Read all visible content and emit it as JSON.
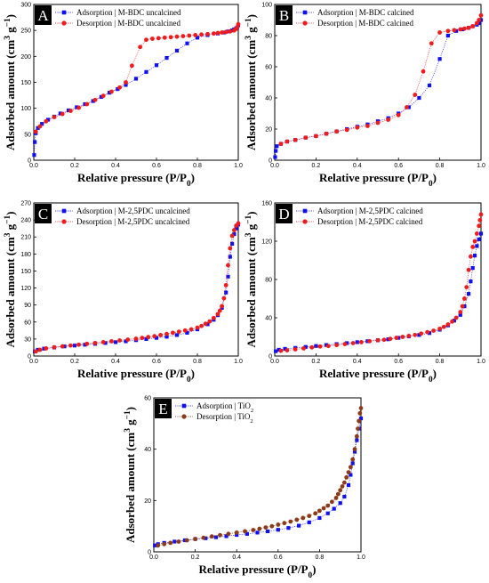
{
  "chart_data": [
    {
      "type": "scatter",
      "panel_label": "A",
      "xlabel": "Relative pressure (P/P0)",
      "ylabel": "Adsorbed amount (cm3 g-1)",
      "xlim": [
        0,
        1.0
      ],
      "ylim": [
        0,
        300
      ],
      "xticks": [
        "0.0",
        "0.2",
        "0.4",
        "0.6",
        "0.8",
        "1.0"
      ],
      "yticks": [
        "0",
        "50",
        "100",
        "150",
        "200",
        "250",
        "300"
      ],
      "grid": false,
      "legend_position": "top-left",
      "series": [
        {
          "name": "Adsorption | M-BDC uncalcined",
          "color": "#1010ee",
          "marker": "square",
          "x": [
            0.002,
            0.005,
            0.01,
            0.02,
            0.04,
            0.07,
            0.1,
            0.13,
            0.17,
            0.21,
            0.25,
            0.29,
            0.33,
            0.37,
            0.41,
            0.45,
            0.5,
            0.55,
            0.6,
            0.65,
            0.7,
            0.75,
            0.8,
            0.85,
            0.9,
            0.93,
            0.95,
            0.97,
            0.98,
            0.99,
            0.995,
            1.0
          ],
          "y": [
            10,
            35,
            52,
            62,
            70,
            78,
            84,
            90,
            96,
            102,
            108,
            114,
            122,
            130,
            137,
            145,
            157,
            170,
            183,
            197,
            211,
            225,
            236,
            241,
            244,
            246,
            248,
            250,
            252,
            254,
            256,
            260
          ]
        },
        {
          "name": "Desorption | M-BDC uncalcined",
          "color": "#ee1c1c",
          "marker": "circle",
          "x": [
            1.0,
            0.995,
            0.99,
            0.98,
            0.96,
            0.94,
            0.92,
            0.9,
            0.88,
            0.85,
            0.82,
            0.79,
            0.76,
            0.73,
            0.7,
            0.67,
            0.64,
            0.61,
            0.58,
            0.55,
            0.52,
            0.48,
            0.45,
            0.42,
            0.38,
            0.34,
            0.3,
            0.26,
            0.22,
            0.18,
            0.14,
            0.1,
            0.06,
            0.03,
            0.01
          ],
          "y": [
            262,
            256,
            253,
            250,
            248,
            247,
            246,
            245,
            244,
            243,
            242,
            241,
            240,
            239,
            238,
            237,
            236,
            235,
            234,
            232,
            218,
            182,
            150,
            140,
            132,
            124,
            116,
            108,
            101,
            95,
            89,
            83,
            75,
            65,
            55
          ]
        }
      ]
    },
    {
      "type": "scatter",
      "panel_label": "B",
      "xlabel": "Relative pressure (P/P0)",
      "ylabel": "Adsorbed amount (cm3 g-1)",
      "xlim": [
        0,
        1.0
      ],
      "ylim": [
        0,
        100
      ],
      "xticks": [
        "0.0",
        "0.2",
        "0.4",
        "0.6",
        "0.8",
        "1.0"
      ],
      "yticks": [
        "0",
        "20",
        "40",
        "60",
        "80",
        "100"
      ],
      "grid": false,
      "legend_position": "top-left",
      "series": [
        {
          "name": "Adsorption | M-BDC calcined",
          "color": "#1010ee",
          "marker": "square",
          "x": [
            0.002,
            0.005,
            0.01,
            0.03,
            0.06,
            0.1,
            0.15,
            0.2,
            0.25,
            0.3,
            0.35,
            0.4,
            0.45,
            0.5,
            0.55,
            0.6,
            0.65,
            0.7,
            0.75,
            0.8,
            0.84,
            0.88,
            0.91,
            0.94,
            0.96,
            0.98,
            0.99,
            1.0
          ],
          "y": [
            2,
            6,
            9,
            10.5,
            12,
            13,
            14.5,
            15.5,
            17,
            18.5,
            20,
            21.5,
            23,
            25,
            27,
            30,
            34,
            40,
            48,
            65,
            80,
            83,
            84,
            85,
            86,
            87,
            88,
            90
          ]
        },
        {
          "name": "Desorption | M-BDC calcined",
          "color": "#ee1c1c",
          "marker": "circle",
          "x": [
            1.0,
            0.99,
            0.98,
            0.96,
            0.94,
            0.92,
            0.9,
            0.87,
            0.84,
            0.8,
            0.76,
            0.72,
            0.68,
            0.64,
            0.6,
            0.55,
            0.5,
            0.45,
            0.4,
            0.35,
            0.3,
            0.25,
            0.2,
            0.15,
            0.1,
            0.06,
            0.03
          ],
          "y": [
            93,
            90,
            88,
            86,
            85,
            84.5,
            84,
            83.5,
            83,
            82,
            75,
            57,
            42,
            34,
            29,
            26,
            24,
            22,
            21,
            19.5,
            18.5,
            17,
            15.5,
            14.5,
            13,
            12,
            10.5
          ]
        }
      ]
    },
    {
      "type": "scatter",
      "panel_label": "C",
      "xlabel": "Relative pressure (P/P0)",
      "ylabel": "Adsorbed amount (cm3 g-1)",
      "xlim": [
        0,
        1.0
      ],
      "ylim": [
        0,
        270
      ],
      "xticks": [
        "0.0",
        "0.2",
        "0.4",
        "0.6",
        "0.8",
        "1.0"
      ],
      "yticks": [
        "0",
        "30",
        "60",
        "90",
        "120",
        "150",
        "180",
        "210",
        "240",
        "270"
      ],
      "grid": false,
      "legend_position": "top-left",
      "series": [
        {
          "name": "Adsorption | M-2,5PDC uncalcined",
          "color": "#1010ee",
          "marker": "square",
          "x": [
            0.005,
            0.02,
            0.05,
            0.1,
            0.15,
            0.2,
            0.25,
            0.3,
            0.35,
            0.4,
            0.45,
            0.5,
            0.55,
            0.6,
            0.65,
            0.7,
            0.75,
            0.8,
            0.85,
            0.88,
            0.9,
            0.92,
            0.94,
            0.95,
            0.96,
            0.97,
            0.98,
            0.99,
            1.0
          ],
          "y": [
            8,
            11,
            13,
            15,
            17,
            18.5,
            20,
            21.5,
            23,
            24.5,
            26,
            28,
            30,
            32,
            34,
            37,
            41,
            47,
            56,
            64,
            72,
            85,
            112,
            140,
            175,
            198,
            215,
            225,
            232
          ]
        },
        {
          "name": "Desorption | M-2,5PDC uncalcined",
          "color": "#ee1c1c",
          "marker": "circle",
          "x": [
            1.0,
            0.99,
            0.98,
            0.97,
            0.96,
            0.95,
            0.94,
            0.93,
            0.92,
            0.91,
            0.9,
            0.88,
            0.86,
            0.84,
            0.82,
            0.8,
            0.77,
            0.74,
            0.71,
            0.68,
            0.65,
            0.62,
            0.59,
            0.56,
            0.53,
            0.5,
            0.46,
            0.42,
            0.38,
            0.34,
            0.3,
            0.26,
            0.22,
            0.18,
            0.14,
            0.1,
            0.06,
            0.03,
            0.01
          ],
          "y": [
            234,
            230,
            222,
            212,
            190,
            160,
            125,
            102,
            88,
            80,
            74,
            67,
            61,
            57,
            53,
            50,
            47,
            45,
            43,
            41,
            39,
            37,
            35,
            33.5,
            32,
            30.5,
            29,
            27.5,
            26,
            24.5,
            23,
            21.5,
            20,
            18.5,
            17,
            15.5,
            13.5,
            11,
            8
          ]
        }
      ]
    },
    {
      "type": "scatter",
      "panel_label": "D",
      "xlabel": "Relative pressure (P/P0)",
      "ylabel": "Adsorbed amount (cm3 g-1)",
      "xlim": [
        0,
        1.0
      ],
      "ylim": [
        0,
        160
      ],
      "xticks": [
        "0.0",
        "0.2",
        "0.4",
        "0.6",
        "0.8",
        "1.0"
      ],
      "yticks": [
        "0",
        "40",
        "80",
        "120",
        "160"
      ],
      "grid": false,
      "legend_position": "top-left",
      "series": [
        {
          "name": "Adsorption | M-2,5PDC calcined",
          "color": "#1010ee",
          "marker": "square",
          "x": [
            0.005,
            0.02,
            0.05,
            0.1,
            0.15,
            0.2,
            0.25,
            0.3,
            0.35,
            0.4,
            0.45,
            0.5,
            0.55,
            0.6,
            0.65,
            0.7,
            0.75,
            0.8,
            0.84,
            0.87,
            0.9,
            0.92,
            0.94,
            0.95,
            0.96,
            0.97,
            0.98,
            0.99,
            1.0
          ],
          "y": [
            5,
            6.5,
            7.5,
            8.5,
            9.5,
            10.5,
            11.5,
            12.5,
            13.5,
            14.5,
            15.5,
            16.5,
            17.5,
            19,
            20.5,
            22,
            24,
            27.5,
            32,
            37,
            43,
            52,
            65,
            78,
            92,
            105,
            115,
            122,
            128
          ]
        },
        {
          "name": "Desorption | M-2,5PDC calcined",
          "color": "#ee1c1c",
          "marker": "circle",
          "x": [
            1.0,
            0.995,
            0.99,
            0.98,
            0.97,
            0.96,
            0.95,
            0.94,
            0.93,
            0.92,
            0.91,
            0.9,
            0.88,
            0.86,
            0.84,
            0.82,
            0.8,
            0.77,
            0.74,
            0.71,
            0.68,
            0.65,
            0.62,
            0.59,
            0.56,
            0.53,
            0.5,
            0.46,
            0.42,
            0.38,
            0.34,
            0.3,
            0.26,
            0.22,
            0.18,
            0.14,
            0.1,
            0.06,
            0.03
          ],
          "y": [
            148,
            142,
            136,
            128,
            120,
            114,
            104,
            90,
            72,
            60,
            52,
            46,
            40,
            36,
            33,
            30.5,
            28.5,
            26.5,
            25,
            23.5,
            22,
            21,
            20,
            19,
            18,
            17,
            16.5,
            15.5,
            14.5,
            13.5,
            12.5,
            11.5,
            10.5,
            10,
            9,
            8,
            7,
            6,
            5.5
          ]
        }
      ]
    },
    {
      "type": "scatter",
      "panel_label": "E",
      "xlabel": "Relative pressure (P/P0)",
      "ylabel": "Adsorbed amount (cm3 g-1)",
      "xlim": [
        0,
        1.0
      ],
      "ylim": [
        0,
        60
      ],
      "xticks": [
        "0.0",
        "0.2",
        "0.4",
        "0.6",
        "0.8",
        "1.0"
      ],
      "yticks": [
        "0",
        "20",
        "40",
        "60"
      ],
      "grid": false,
      "legend_position": "top-left",
      "series": [
        {
          "name": "Adsorption | TiO2",
          "color": "#1010ee",
          "marker": "square",
          "x": [
            0.005,
            0.02,
            0.05,
            0.1,
            0.15,
            0.2,
            0.25,
            0.3,
            0.35,
            0.4,
            0.45,
            0.5,
            0.55,
            0.6,
            0.65,
            0.7,
            0.75,
            0.8,
            0.84,
            0.87,
            0.9,
            0.92,
            0.94,
            0.95,
            0.96,
            0.97,
            0.98,
            0.99,
            1.0
          ],
          "y": [
            2.5,
            3,
            3.5,
            4,
            4.5,
            5,
            5.3,
            5.7,
            6.1,
            6.6,
            7,
            7.5,
            8,
            8.6,
            9.3,
            10.2,
            11.5,
            13.2,
            15,
            16.8,
            19,
            21.5,
            26,
            30,
            34.5,
            39,
            43.5,
            48,
            52
          ]
        },
        {
          "name": "Desorption | TiO2",
          "color": "#8b3a1a",
          "marker": "circle",
          "x": [
            1.0,
            0.995,
            0.99,
            0.985,
            0.98,
            0.97,
            0.96,
            0.95,
            0.94,
            0.93,
            0.92,
            0.91,
            0.9,
            0.89,
            0.88,
            0.86,
            0.84,
            0.82,
            0.8,
            0.78,
            0.75,
            0.72,
            0.69,
            0.66,
            0.63,
            0.6,
            0.57,
            0.54,
            0.51,
            0.48,
            0.44,
            0.4,
            0.36,
            0.32,
            0.28,
            0.24,
            0.2,
            0.16,
            0.12,
            0.08,
            0.05,
            0.02
          ],
          "y": [
            56,
            54,
            51,
            48,
            45,
            40,
            36,
            33,
            31,
            29,
            27,
            25.5,
            24,
            22.5,
            21,
            19.5,
            18,
            17,
            16,
            15,
            14,
            13.2,
            12.5,
            11.8,
            11.2,
            10.6,
            10,
            9.5,
            9,
            8.5,
            8,
            7.5,
            7,
            6.5,
            6,
            5.5,
            5,
            4.5,
            4,
            3.5,
            3,
            2.5
          ]
        }
      ]
    }
  ]
}
